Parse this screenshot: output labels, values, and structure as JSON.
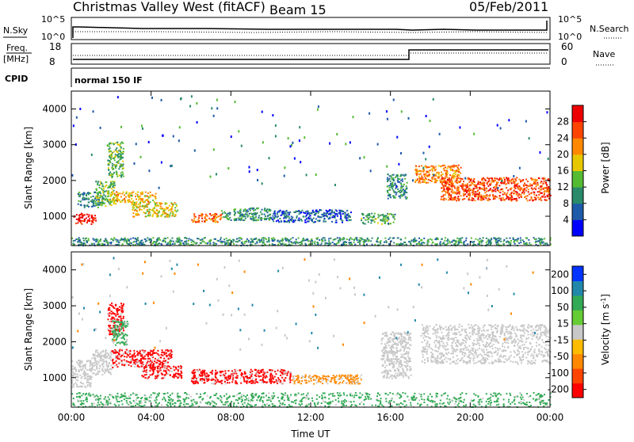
{
  "header": {
    "title": "Christmas Valley West (fitACF)",
    "beam": "Beam 15",
    "date": "05/Feb/2011"
  },
  "top_panels": {
    "nsky_label": "N.Sky",
    "nsearch_label": "N.Search",
    "nsky_ticks": [
      "10^5",
      "10^0"
    ],
    "freq_label_1": "Freq.",
    "freq_label_2": "[MHz]",
    "freq_ticks": [
      "18",
      "8"
    ],
    "nave_label": "Nave",
    "nave_ticks": [
      "60",
      "0"
    ],
    "cpid_label": "CPID",
    "cpid_text": "normal 150 IF"
  },
  "chart_data": [
    {
      "type": "heatmap",
      "name": "power",
      "ylabel": "Slant Range [km]",
      "xlabel": "",
      "xlim": [
        0,
        24
      ],
      "ylim": [
        180,
        4500
      ],
      "yticks": [
        1000,
        2000,
        3000,
        4000
      ],
      "colorbar": {
        "label": "Power [dB]",
        "ticks": [
          4,
          8,
          12,
          16,
          20,
          24,
          28
        ],
        "range": [
          0,
          32
        ],
        "colors": [
          "#0000ff",
          "#1e5aaa",
          "#2a8a6a",
          "#55bb33",
          "#e6c800",
          "#ff8800",
          "#ff4400",
          "#ee0000"
        ]
      },
      "scatter_features": [
        {
          "t": [
            0.1,
            1.2
          ],
          "r": [
            800,
            1100
          ],
          "level": 30
        },
        {
          "t": [
            0.3,
            1.4
          ],
          "r": [
            1250,
            1700
          ],
          "level": 9
        },
        {
          "t": [
            1.2,
            2.2
          ],
          "r": [
            1300,
            2000
          ],
          "level": 14
        },
        {
          "t": [
            1.8,
            2.6
          ],
          "r": [
            2100,
            3100
          ],
          "level": 13
        },
        {
          "t": [
            2.0,
            4.2
          ],
          "r": [
            1400,
            1700
          ],
          "level": 20
        },
        {
          "t": [
            3.0,
            5.3
          ],
          "r": [
            1000,
            1400
          ],
          "level": 18
        },
        {
          "t": [
            6.0,
            7.5
          ],
          "r": [
            850,
            1100
          ],
          "level": 24
        },
        {
          "t": [
            7.5,
            10.0
          ],
          "r": [
            900,
            1250
          ],
          "level": 11
        },
        {
          "t": [
            10.0,
            14.0
          ],
          "r": [
            850,
            1200
          ],
          "level": 6
        },
        {
          "t": [
            14.5,
            16.2
          ],
          "r": [
            800,
            1100
          ],
          "level": 12
        },
        {
          "t": [
            15.8,
            16.8
          ],
          "r": [
            1500,
            2200
          ],
          "level": 10
        },
        {
          "t": [
            17.2,
            19.5
          ],
          "r": [
            1950,
            2450
          ],
          "level": 22
        },
        {
          "t": [
            18.5,
            24.0
          ],
          "r": [
            1450,
            2100
          ],
          "level": 26
        },
        {
          "t": [
            0.0,
            24.0
          ],
          "r": [
            200,
            420
          ],
          "level": 10
        }
      ]
    },
    {
      "type": "heatmap",
      "name": "velocity",
      "ylabel": "Slant Range [km]",
      "xlabel": "Time UT",
      "xlim": [
        0,
        24
      ],
      "ylim": [
        180,
        4500
      ],
      "yticks": [
        1000,
        2000,
        3000,
        4000
      ],
      "xticks": [
        "00:00",
        "04:00",
        "08:00",
        "12:00",
        "16:00",
        "20:00",
        "00:00"
      ],
      "colorbar": {
        "label": "Velocity [m s",
        "label_sup": "-1",
        "label_end": "]",
        "ticks": [
          "200",
          "100",
          "50",
          "15",
          "-15",
          "-50",
          "-100",
          "-200"
        ],
        "colors": [
          "#ff0000",
          "#ff4400",
          "#ff8800",
          "#ffbb00",
          "#c8c8c8",
          "#66cc33",
          "#33aa55",
          "#2288aa",
          "#0033ff"
        ]
      },
      "scatter_features": [
        {
          "t": [
            0.0,
            1.0
          ],
          "r": [
            750,
            1500
          ],
          "level": "ground"
        },
        {
          "t": [
            1.0,
            2.0
          ],
          "r": [
            1100,
            1800
          ],
          "level": "ground"
        },
        {
          "t": [
            1.8,
            2.6
          ],
          "r": [
            2200,
            3100
          ],
          "level": "-200"
        },
        {
          "t": [
            2.0,
            2.8
          ],
          "r": [
            1900,
            2600
          ],
          "level": "50"
        },
        {
          "t": [
            2.0,
            5.0
          ],
          "r": [
            1300,
            1800
          ],
          "level": "-200"
        },
        {
          "t": [
            3.5,
            5.5
          ],
          "r": [
            1000,
            1350
          ],
          "level": "-200"
        },
        {
          "t": [
            6.0,
            11.0
          ],
          "r": [
            850,
            1250
          ],
          "level": "-150"
        },
        {
          "t": [
            11.0,
            14.5
          ],
          "r": [
            850,
            1100
          ],
          "level": "-50"
        },
        {
          "t": [
            15.5,
            17.0
          ],
          "r": [
            1000,
            2300
          ],
          "level": "ground"
        },
        {
          "t": [
            17.5,
            24.0
          ],
          "r": [
            1400,
            2500
          ],
          "level": "ground"
        },
        {
          "t": [
            0.0,
            24.0
          ],
          "r": [
            200,
            600
          ],
          "level": "50"
        }
      ]
    }
  ]
}
